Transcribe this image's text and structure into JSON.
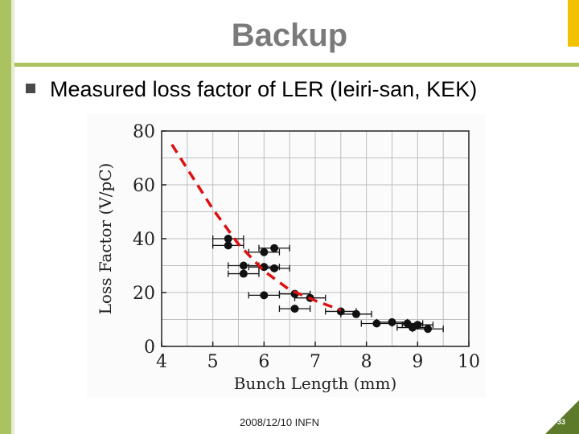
{
  "slide": {
    "title": "Backup",
    "bullet": "Measured loss factor of LER (Ieiri-san, KEK)",
    "footer": "2008/12/10 INFN",
    "page_number": "33",
    "accent_color": "#aac25f",
    "corner_color": "#5c7a2a"
  },
  "chart_data": {
    "type": "scatter",
    "xlabel": "Bunch Length (mm)",
    "ylabel": "Loss Factor (V/pC)",
    "xlim": [
      4,
      10
    ],
    "ylim": [
      0,
      80
    ],
    "xticks": [
      "4",
      "5",
      "6",
      "7",
      "8",
      "9",
      "10"
    ],
    "yticks": [
      "0",
      "20",
      "40",
      "60",
      "80"
    ],
    "grid": true,
    "series": [
      {
        "marker": "filled-circle",
        "color": "#111111",
        "points": [
          {
            "x": 5.3,
            "y": 40,
            "xerr": 0.3
          },
          {
            "x": 5.3,
            "y": 37.5,
            "xerr": 0.3
          },
          {
            "x": 5.6,
            "y": 30,
            "xerr": 0.3
          },
          {
            "x": 5.6,
            "y": 27,
            "xerr": 0.3
          },
          {
            "x": 6.0,
            "y": 35,
            "xerr": 0.3
          },
          {
            "x": 6.2,
            "y": 36.5,
            "xerr": 0.3
          },
          {
            "x": 6.0,
            "y": 29.5,
            "xerr": 0.3
          },
          {
            "x": 6.2,
            "y": 29,
            "xerr": 0.3
          },
          {
            "x": 6.0,
            "y": 19,
            "xerr": 0.3
          },
          {
            "x": 6.6,
            "y": 19.5,
            "xerr": 0.3
          },
          {
            "x": 6.9,
            "y": 18,
            "xerr": 0.3
          },
          {
            "x": 6.6,
            "y": 14,
            "xerr": 0.3
          },
          {
            "x": 7.5,
            "y": 13,
            "xerr": 0.3
          },
          {
            "x": 7.8,
            "y": 12,
            "xerr": 0.3
          },
          {
            "x": 8.2,
            "y": 8.5,
            "xerr": 0.3
          },
          {
            "x": 8.5,
            "y": 9,
            "xerr": 0.3
          },
          {
            "x": 8.8,
            "y": 8.5,
            "xerr": 0.3
          },
          {
            "x": 9.0,
            "y": 8,
            "xerr": 0.3
          },
          {
            "x": 9.2,
            "y": 6.5,
            "xerr": 0.3
          },
          {
            "x": 8.9,
            "y": 7,
            "xerr": 0.3
          }
        ]
      }
    ],
    "fit_line": {
      "style": "dashed",
      "color": "#dd1111",
      "points": [
        [
          4.2,
          75
        ],
        [
          4.5,
          66
        ],
        [
          5.0,
          51
        ],
        [
          5.5,
          38
        ],
        [
          6.0,
          28
        ],
        [
          6.5,
          21
        ],
        [
          7.0,
          17
        ],
        [
          7.5,
          13.5
        ]
      ]
    }
  }
}
